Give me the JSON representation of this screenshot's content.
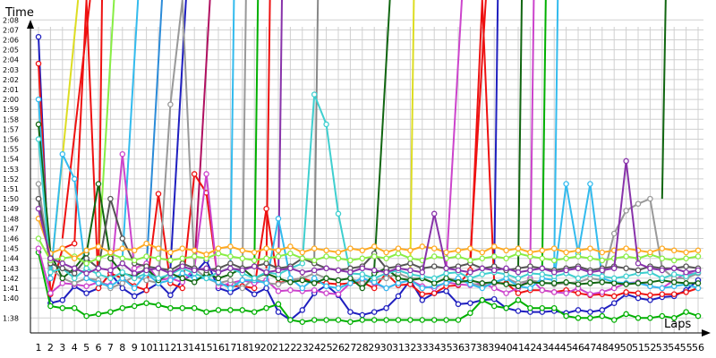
{
  "chart_data": {
    "type": "line",
    "title": "",
    "xlabel": "Laps",
    "ylabel": "Time",
    "grid": true,
    "legend": "none",
    "x": [
      1,
      2,
      3,
      4,
      5,
      6,
      7,
      8,
      9,
      10,
      11,
      12,
      13,
      14,
      15,
      16,
      17,
      18,
      19,
      20,
      21,
      22,
      23,
      24,
      25,
      26,
      27,
      28,
      29,
      30,
      31,
      32,
      33,
      34,
      35,
      36,
      37,
      38,
      39,
      40,
      41,
      42,
      43,
      44,
      45,
      46,
      47,
      48,
      49,
      50,
      51,
      52,
      53,
      54,
      55,
      56
    ],
    "xtick_labels": [
      "1",
      "2",
      "3",
      "4",
      "5",
      "6",
      "7",
      "8",
      "9",
      "10",
      "11",
      "12",
      "13",
      "14",
      "15",
      "16",
      "17",
      "18",
      "19",
      "20",
      "21",
      "22",
      "23",
      "24",
      "25",
      "26",
      "27",
      "28",
      "29",
      "30",
      "31",
      "32",
      "33",
      "34",
      "35",
      "36",
      "37",
      "38",
      "39",
      "40",
      "41",
      "42",
      "43",
      "44",
      "45",
      "46",
      "47",
      "48",
      "49",
      "50",
      "51",
      "52",
      "53",
      "54",
      "55",
      "56"
    ],
    "ytick_labels": [
      "1:38",
      "1:40",
      "1:41",
      "1:42",
      "1:43",
      "1:44",
      "1:45",
      "1:46",
      "1:47",
      "1:48",
      "1:49",
      "1:50",
      "1:51",
      "1:52",
      "1:53",
      "1:54",
      "1:55",
      "1:56",
      "1:57",
      "1:58",
      "1:59",
      "2:00",
      "2:01",
      "2:02",
      "2:03",
      "2:04",
      "2:05",
      "2:06",
      "2:07",
      "2:08"
    ],
    "ylim_seconds": [
      97,
      129
    ],
    "series": [
      {
        "color": "#1f1fbf",
        "values": [
          126.3,
          99.5,
          99.8,
          101.2,
          100.5,
          101.0,
          102.5,
          101.0,
          100.2,
          100.8,
          101.5,
          100.3,
          101.8,
          102.5,
          103.8,
          101.0,
          100.6,
          101.2,
          100.4,
          101.0,
          98.6,
          97.8,
          98.8,
          100.5,
          101.3,
          100.3,
          98.6,
          98.3,
          98.6,
          99.0,
          100.2,
          101.8,
          99.8,
          100.5,
          100.7,
          99.4,
          99.5,
          99.8,
          99.9,
          99.0,
          98.7,
          98.6,
          98.6,
          98.7,
          98.5,
          98.8,
          98.6,
          98.8,
          99.5,
          100.4,
          100.0,
          99.8,
          100.1,
          100.2,
          100.8,
          101.8
        ]
      },
      {
        "color": "#00b000",
        "values": [
          104.6,
          99.2,
          99.0,
          99.0,
          98.2,
          98.4,
          98.6,
          99.0,
          99.2,
          99.5,
          99.3,
          99.0,
          99.0,
          99.0,
          98.6,
          98.8,
          98.8,
          98.8,
          98.6,
          99.0,
          99.4,
          97.8,
          97.6,
          97.8,
          97.8,
          97.8,
          97.6,
          97.8,
          97.8,
          97.8,
          97.8,
          97.8,
          97.8,
          97.8,
          97.8,
          97.8,
          98.5,
          99.8,
          99.2,
          99.0,
          99.8,
          99.0,
          99.0,
          99.0,
          98.2,
          98.0,
          98.0,
          98.2,
          97.8,
          98.4,
          98.0,
          98.0,
          98.2,
          98.0,
          98.6,
          98.2
        ]
      },
      {
        "color": "#ee1111",
        "values": [
          123.6,
          100.4,
          105.0,
          105.5,
          130,
          101.0,
          102.5,
          102.0,
          101.2,
          100.8,
          110.5,
          101.5,
          101.0,
          112.5,
          110.6,
          101.5,
          101.2,
          101.2,
          101.0,
          109.0,
          101.5,
          101.8,
          102.0,
          101.6,
          101.5,
          101.4,
          101.5,
          101.6,
          101.0,
          102.5,
          101.3,
          101.4,
          100.4,
          100.5,
          101.2,
          101.3,
          102.8,
          130,
          101.5,
          101.5,
          100.5,
          100.8,
          100.8,
          100.6,
          100.8,
          100.5,
          100.3,
          100.4,
          100.2,
          100.6,
          100.5,
          100.3,
          100.4,
          100.4,
          100.6,
          101.0
        ]
      },
      {
        "color": "#cc44cc",
        "values": [
          105.0,
          100.5,
          101.5,
          101.4,
          101.2,
          101.6,
          101.3,
          114.5,
          103.0,
          103.5,
          101.8,
          102.0,
          101.6,
          103.0,
          112.5,
          101.2,
          101.5,
          101.8,
          101.5,
          101.8,
          100.7,
          100.8,
          100.7,
          100.8,
          100.5,
          100.4,
          101.5,
          102.0,
          101.5,
          101.0,
          101.5,
          101.8,
          101.2,
          101.0,
          101.6,
          101.4,
          101.3,
          101.5,
          101.0,
          100.5,
          101.0,
          102.0,
          100.8,
          100.6,
          100.5,
          101.0,
          100.4,
          100.6,
          101.0,
          101.5,
          101.6,
          101.2,
          101.0,
          101.8,
          102.5,
          102.5
        ]
      },
      {
        "color": "#999999",
        "values": [
          111.5,
          103.0,
          102.0,
          101.5,
          102.0,
          101.8,
          101.0,
          101.5,
          102.2,
          101.8,
          101.5,
          119.5,
          130,
          103.0,
          102.0,
          101.5,
          101.8,
          101.0,
          102.0,
          101.5,
          101.4,
          101.8,
          102.0,
          102.5,
          102.0,
          101.8,
          102.0,
          101.5,
          101.8,
          102.0,
          102.5,
          102.0,
          102.0,
          101.5,
          102.0,
          101.8,
          101.5,
          101.2,
          101.5,
          102.0,
          101.5,
          101.8,
          101.6,
          101.4,
          101.5,
          101.6,
          102.0,
          101.8,
          106.5,
          108.8,
          109.5,
          110.0,
          103.0,
          102.0,
          102.0,
          102.5
        ]
      },
      {
        "color": "#33bbee",
        "values": [
          120.0,
          102.0,
          114.5,
          112.0,
          102.0,
          101.5,
          101.2,
          102.0,
          101.0,
          102.5,
          101.5,
          101.8,
          102.5,
          102.0,
          102.0,
          101.6,
          101.0,
          101.8,
          101.8,
          101.5,
          108.0,
          102.0,
          101.0,
          102.0,
          101.2,
          101.0,
          101.5,
          102.0,
          101.6,
          101.0,
          101.5,
          101.8,
          101.0,
          101.2,
          101.5,
          102.0,
          101.4,
          101.0,
          101.6,
          102.0,
          101.2,
          101.0,
          102.0,
          101.8,
          111.5,
          104.5,
          111.5,
          102.0,
          101.6,
          101.5,
          101.5,
          101.2,
          101.0,
          101.2,
          101.4,
          101.0
        ]
      },
      {
        "color": "#116611",
        "values": [
          117.5,
          104.5,
          102.0,
          103.0,
          104.5,
          111.5,
          104.0,
          102.5,
          102.2,
          103.0,
          101.8,
          102.5,
          102.0,
          101.6,
          102.5,
          102.0,
          102.4,
          103.0,
          102.0,
          102.5,
          102.0,
          101.6,
          101.8,
          101.5,
          102.0,
          101.8,
          102.0,
          101.0,
          102.5,
          103.0,
          102.0,
          101.8,
          102.0,
          101.5,
          102.0,
          101.6,
          101.8,
          101.5,
          101.6,
          101.4,
          101.2,
          101.6,
          101.5,
          101.5,
          101.6,
          101.4,
          101.5,
          101.6,
          101.5,
          101.4,
          101.5,
          101.6,
          101.8,
          101.6,
          101.5,
          101.5
        ]
      },
      {
        "color": "#3fcfcf",
        "values": [
          116.0,
          102.6,
          103.0,
          102.0,
          103.0,
          102.4,
          102.0,
          102.6,
          102.0,
          102.5,
          102.0,
          102.4,
          103.0,
          102.5,
          102.0,
          102.6,
          103.0,
          102.5,
          102.0,
          102.6,
          102.4,
          103.0,
          103.5,
          120.5,
          117.5,
          108.5,
          102.5,
          102.4,
          102.0,
          102.5,
          102.8,
          102.4,
          102.2,
          102.0,
          102.5,
          102.6,
          102.0,
          102.4,
          102.6,
          102.4,
          102.0,
          102.5,
          102.4,
          102.2,
          102.5,
          102.0,
          102.4,
          102.2,
          102.0,
          102.2,
          102.5,
          102.6,
          102.0,
          102.4,
          102.2,
          102.6
        ]
      },
      {
        "color": "#555555",
        "values": [
          110.0,
          103.5,
          103.0,
          102.5,
          104.0,
          103.0,
          110.0,
          106.0,
          103.5,
          103.2,
          103.0,
          102.8,
          103.5,
          103.0,
          102.8,
          103.0,
          103.5,
          103.0,
          103.2,
          103.5,
          103.0,
          103.2,
          104.0,
          103.5,
          103.0,
          102.8,
          103.0,
          103.2,
          104.5,
          103.0,
          103.2,
          103.5,
          103.0,
          103.2,
          103.0,
          103.2,
          103.5,
          103.0,
          103.2,
          102.8,
          103.0,
          103.2,
          103.0,
          102.8,
          103.0,
          103.2,
          102.8,
          103.0,
          103.2,
          103.0,
          102.8,
          103.2,
          103.0,
          103.0,
          103.2,
          103.0
        ]
      },
      {
        "color": "#88ee44",
        "values": [
          106.0,
          103.8,
          104.0,
          104.2,
          103.5,
          104.0,
          104.5,
          104.0,
          103.8,
          104.2,
          104.0,
          103.8,
          104.0,
          104.2,
          104.0,
          104.5,
          104.2,
          104.0,
          103.8,
          104.0,
          104.2,
          104.5,
          104.0,
          103.8,
          104.2,
          104.0,
          103.8,
          104.0,
          104.2,
          104.0,
          104.5,
          104.0,
          103.8,
          104.2,
          104.0,
          104.2,
          103.8,
          104.0,
          104.2,
          104.0,
          104.5,
          104.2,
          104.0,
          103.8,
          104.0,
          104.2,
          104.0,
          103.8,
          104.0,
          104.2,
          104.0,
          104.4,
          104.0,
          103.8,
          104.0,
          104.2
        ]
      },
      {
        "color": "#ffaa22",
        "values": [
          108.0,
          104.5,
          105.0,
          104.0,
          104.8,
          105.2,
          104.6,
          105.0,
          104.8,
          105.5,
          105.0,
          104.6,
          105.0,
          104.8,
          104.4,
          105.0,
          105.2,
          104.8,
          104.6,
          105.0,
          104.8,
          105.2,
          104.6,
          105.0,
          104.8,
          104.6,
          105.0,
          104.8,
          105.2,
          104.6,
          105.0,
          104.8,
          105.2,
          105.0,
          104.6,
          104.8,
          105.0,
          104.6,
          105.2,
          104.8,
          105.0,
          104.6,
          104.8,
          105.0,
          104.6,
          104.8,
          105.0,
          104.6,
          104.8,
          105.0,
          104.8,
          104.6,
          105.0,
          104.8,
          104.6,
          104.8
        ]
      },
      {
        "color": "#8833aa",
        "values": [
          109.0,
          104.0,
          103.5,
          103.0,
          102.5,
          103.0,
          102.8,
          103.5,
          102.5,
          102.8,
          103.0,
          102.5,
          103.2,
          102.8,
          103.0,
          102.6,
          103.0,
          102.8,
          103.2,
          102.6,
          102.8,
          103.0,
          102.6,
          102.8,
          103.0,
          102.8,
          102.6,
          103.0,
          102.8,
          102.6,
          103.0,
          102.8,
          102.6,
          108.5,
          103.0,
          102.8,
          102.6,
          103.0,
          102.8,
          103.0,
          102.6,
          102.8,
          103.0,
          102.6,
          102.8,
          103.0,
          102.6,
          102.8,
          103.0,
          113.8,
          103.5,
          103.0,
          102.8,
          103.0,
          102.6,
          102.8
        ]
      }
    ]
  },
  "spikes": [
    {
      "color": "#dddd22",
      "from": [
        2,
        102
      ],
      "top": 4
    },
    {
      "color": "#ee1111",
      "from": [
        3,
        106
      ],
      "top": 5
    },
    {
      "color": "#88ee44",
      "from": [
        6,
        104
      ],
      "top": 7
    },
    {
      "color": "#ee1111",
      "from": [
        6,
        102
      ],
      "top": 6
    },
    {
      "color": "#33bbee",
      "from": [
        8,
        104
      ],
      "top": 9
    },
    {
      "color": "#2b8bd8",
      "from": [
        10,
        103
      ],
      "top": 11
    },
    {
      "color": "#1f1fbf",
      "from": [
        12,
        103
      ],
      "top": 13
    },
    {
      "color": "#b01060",
      "from": [
        14,
        103
      ],
      "top": 15
    },
    {
      "color": "#33bbee",
      "from": [
        17,
        103
      ],
      "top": 17
    },
    {
      "color": "#999999",
      "from": [
        18,
        102
      ],
      "top": 18
    },
    {
      "color": "#00b000",
      "from": [
        19,
        103
      ],
      "top": 19
    },
    {
      "color": "#ee1111",
      "from": [
        20,
        103
      ],
      "top": 20
    },
    {
      "color": "#8833aa",
      "from": [
        21,
        102
      ],
      "top": 21
    },
    {
      "color": "#888888",
      "from": [
        24,
        104
      ],
      "top": 24
    },
    {
      "color": "#116611",
      "from": [
        29,
        103
      ],
      "top": 30
    },
    {
      "color": "#dddd22",
      "from": [
        32,
        103
      ],
      "top": 32
    },
    {
      "color": "#cc44cc",
      "from": [
        35,
        103
      ],
      "top": 36
    },
    {
      "color": "#ee1111",
      "from": [
        37,
        104
      ],
      "top": 38
    },
    {
      "color": "#1f1fbf",
      "from": [
        39,
        103
      ],
      "top": 39
    },
    {
      "color": "#116611",
      "from": [
        41,
        103
      ],
      "top": 41
    },
    {
      "color": "#cc44cc",
      "from": [
        42,
        103
      ],
      "top": 42
    },
    {
      "color": "#00b000",
      "from": [
        43,
        103
      ],
      "top": 43
    },
    {
      "color": "#33bbee",
      "from": [
        44,
        103
      ],
      "top": 44
    },
    {
      "color": "#116611",
      "from": [
        53,
        110
      ],
      "top": 53
    }
  ]
}
